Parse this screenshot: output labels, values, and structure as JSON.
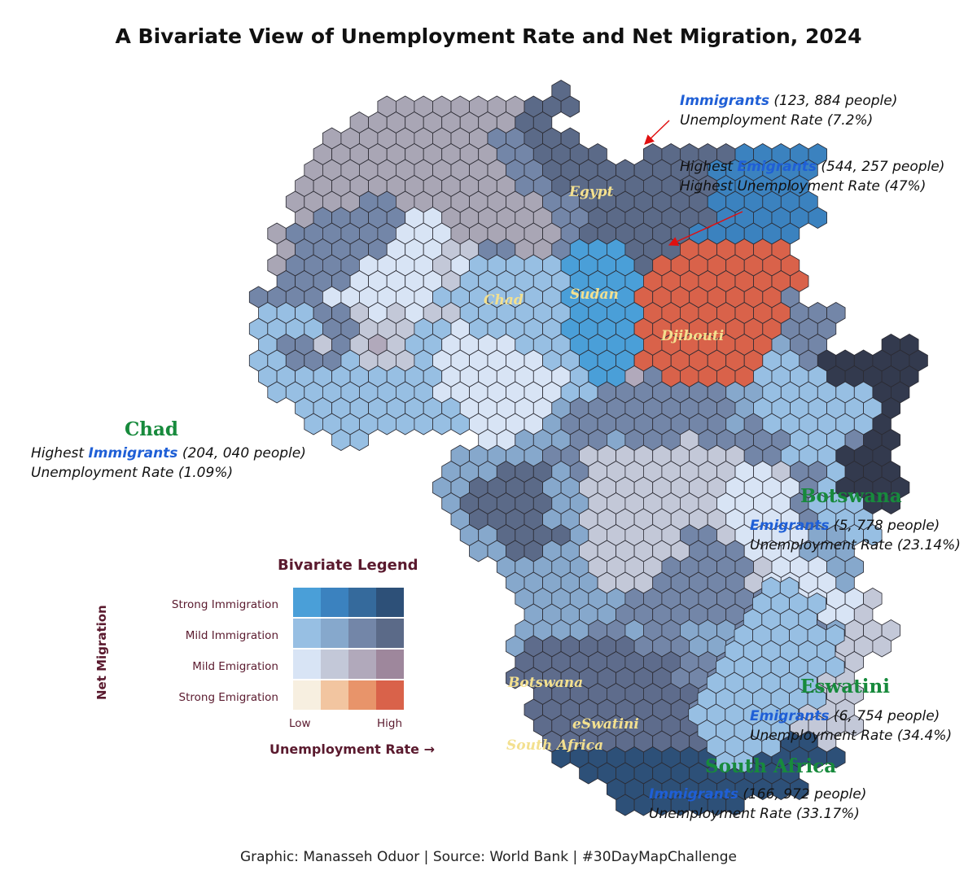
{
  "title": "A Bivariate View of Unemployment Rate and Net Migration, 2024",
  "credit": "Graphic: Manasseh Oduor | Source: World Bank | #30DayMapChallenge",
  "colors": {
    "hex_stroke": "#2b2b33",
    "label_yellow": "#f3e08f",
    "highlight_blue": "#1f5fd6",
    "title_green": "#178a3c",
    "legend_text": "#5a1a2e",
    "arrow_red": "#e01010"
  },
  "map_labels": {
    "egypt": "Egypt",
    "chad": "Chad",
    "sudan": "Sudan",
    "djibouti": "Djibouti",
    "botswana": "Botswana",
    "eswatini": "eSwatini",
    "south_africa": "South Africa"
  },
  "annotations": {
    "egypt": {
      "highlight": "Immigrants",
      "rest": " (123, 884 people)",
      "line2": "Unemployment Rate (7.2%)"
    },
    "sudan": {
      "prefix": "Highest ",
      "highlight": "Emigrants",
      "rest": " (544, 257 people)",
      "line2": "Highest Unemployment Rate (47%)"
    },
    "chad": {
      "title": "Chad",
      "prefix": "Highest ",
      "highlight": "Immigrants",
      "rest": " (204, 040 people)",
      "line2": "Unemployment Rate (1.09%)"
    },
    "botswana": {
      "title": "Botswana",
      "highlight": "Emigrants",
      "rest": " (5, 778 people)",
      "line2": "Unemployment Rate (23.14%)"
    },
    "eswatini": {
      "title": "Eswatini",
      "highlight": "Emigrants",
      "rest": " (6, 754 people)",
      "line2": "Unemployment Rate (34.4%)"
    },
    "south_africa": {
      "title": "South Africa",
      "highlight": "Immigrants",
      "rest": " (166, 972 people)",
      "line2": "Unemployment Rate (33.17%)"
    }
  },
  "legend": {
    "title": "Bivariate Legend",
    "y_axis": "Net Migration",
    "x_axis": "Unemployment Rate →",
    "x_low": "Low",
    "x_high": "High",
    "rows": [
      "Strong Immigration",
      "Mild Immigration",
      "Mild Emigration",
      "Strong Emigration"
    ],
    "matrix": [
      [
        "#4a9fd8",
        "#3b82bf",
        "#356a9c",
        "#2d5078"
      ],
      [
        "#97bfe3",
        "#86a8cc",
        "#7386a8",
        "#5b6a88"
      ],
      [
        "#d8e4f5",
        "#c3c8d8",
        "#b1a9bb",
        "#9e879c"
      ],
      [
        "#f7efe0",
        "#f2c5a0",
        "#e8946a",
        "#d9624a"
      ]
    ]
  },
  "palette": {
    "a": "#9fd0ee",
    "b": "#97bfe3",
    "c": "#86a8cc",
    "d": "#7386a8",
    "e": "#5b6a88",
    "f": "#d8e4f5",
    "g": "#c3c8d8",
    "h": "#b1a9bb",
    "i": "#a5c8e8",
    "j": "#4a9fd8",
    "k": "#3b82bf",
    "l": "#2d5078",
    "m": "#d9624a",
    "n": "#333a4e",
    "o": "#a9a6b5",
    "p": "#4f6286",
    "q": "#9e879c",
    "r": "#dfe8f5",
    "s": "#5e6c8c"
  },
  "hexgrid": [
    "..........................................",
    "...................e......................",
    "..........ooooooooeee.....................",
    "........oooooooooee.......................",
    ".......oooooooooddeee....................",
    "......ooooooooooddeeee..eeeeekkkkk........",
    "......oooooooooooddeeeeeeeeekkkkkk........",
    ".....ooooooooooooddeeeeeeeeekkkkk.........",
    ".....ooooddooooooooddeeeeeeekkkkkk........",
    ".....odddddffooooooddeeeeeeekkkkkk........",
    "....oddddddfffoooooodeeeeeekkkkkk.........",
    "....odddddfffggddoodjjjeeemmmmmm..........",
    "....oddddffffgfbbbbbjjjjemmmmmmmm.........",
    "....ddddfffffgbbbbbbjjjjmmmmmmmmm.........",
    "...ddddffffffbbbbbbbjjjjmmmmmmmmd.........",
    "...bbbddgfgfggbbbbbbjjjjmmmmmmmmddd.......",
    "...bbbbddgggbbfbbbbbjjjjmmmmmmmmddd.......",
    "...bddgdghgbbffffbbbjjjjmmmmmmmcdd...nn...",
    "...bbdddbgggbffffffbbjjjmmmmmmmbbdnnnnnn..",
    "...bbbbbbbbbbfffffffbjjhdmmmmmbbbbnnnnn...",
    "....bbbbbbbbbfffffffbbdddddddccbbbbbbnn...",
    ".....bbbbbbbbbfffffcdddddddddcbbbbbbbn....",
    "......bbbbbbbbbffffcdddddddddcdbbbbbbn....",
    ".......bb......ffcccddcdddgdddddbbbdnn....",
    "..............cccccddgggggggggddbbbnnn....",
    ".............ccceeecdggggggggffgddbnnn....",
    ".............cceeeeccggggggggffffdbnnnn...",
    ".............ceeeeeccgggggggffffdbbbnn....",
    "..............ceeeeccggggggggffffdbbb.....",
    "..............cceeeecgggggddgffffccbb.....",
    "...............cceeccggggggdddfffccc......",
    "................cccccggggdddddgfffcc......",
    ".................cccccgggdddddgffffc......",
    ".................ccccccdddddddddffffg.....",
    "..................cccccddddddddddfffg.....",
    ".................ccccddcddcccdddddcggg.....",
    ".................cssssssdddcccddddcggg.....",
    ".................sssssssssddddgggggg......",
    ".................sssssssssdddhhhhhgg......",
    "..................sssssssssddhhhhggg......",
    "..................sssssssssddhhhhggg......",
    "..................ssssssssssslllgggg......",
    "...................sssssssssslllllg.......",
    "...................llllllllllllllll.......",
    ".....................llllllllllll.........",
    "......................lllllllllll.........",
    ".......................lllllll............",
    ".........................................."
  ],
  "madagascar": [
    "....bb..",
    "...bbbb.",
    "...bbbb.",
    "..bbbbbb",
    "..bbbbbb",
    ".bbbbbbb",
    ".bbbbbb.",
    "bbbbbbb.",
    "bbbbbb..",
    "bbbbb...",
    ".bbbb...",
    ".bb....."
  ]
}
